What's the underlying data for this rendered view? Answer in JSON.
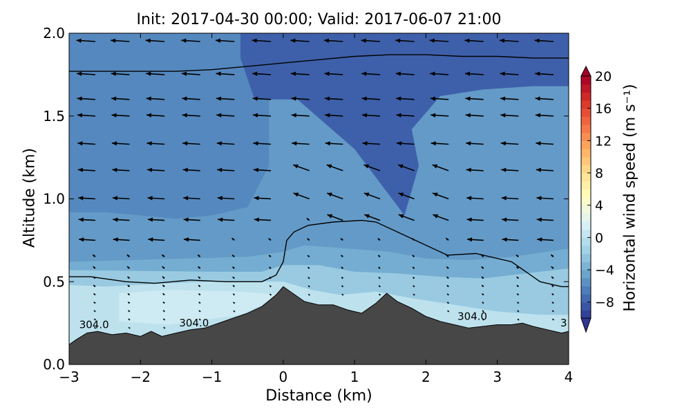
{
  "chart_data": {
    "type": "contour-quiver-cross-section",
    "title": "Init: 2017-04-30 00:00; Valid: 2017-06-07 21:00",
    "xlabel": "Distance (km)",
    "ylabel": "Altitude (km)",
    "xlim": [
      -3,
      4
    ],
    "ylim": [
      0,
      2.0
    ],
    "xticks": [
      "−3",
      "−2",
      "−1",
      "0",
      "1",
      "2",
      "3",
      "4"
    ],
    "yticks": [
      "0.0",
      "0.5",
      "1.0",
      "1.5",
      "2.0"
    ],
    "colorbar": {
      "label": "Horizontal wind speed (m s⁻¹)",
      "range": [
        -10,
        20
      ],
      "ticks": [
        "20",
        "16",
        "12",
        "8",
        "4",
        "0",
        "−4",
        "−8"
      ],
      "colormap": [
        "#313695",
        "#4575b4",
        "#74add1",
        "#abd9e9",
        "#e0f3f8",
        "#ffffbf",
        "#fee090",
        "#fdae61",
        "#f46d43",
        "#d73027",
        "#a50026"
      ]
    },
    "contour_labels": [
      {
        "text": "304.0",
        "x": -2.65,
        "y": 0.22
      },
      {
        "text": "304.0",
        "x": -1.25,
        "y": 0.23
      },
      {
        "text": "304.0",
        "x": 2.65,
        "y": 0.27
      },
      {
        "text": "3",
        "x": 3.93,
        "y": 0.23
      }
    ],
    "terrain": {
      "x": [
        -3,
        -2.9,
        -2.75,
        -2.6,
        -2.4,
        -2.2,
        -2.0,
        -1.85,
        -1.7,
        -1.5,
        -1.3,
        -1.1,
        -0.9,
        -0.7,
        -0.5,
        -0.3,
        -0.1,
        0.0,
        0.1,
        0.3,
        0.5,
        0.7,
        0.9,
        1.1,
        1.3,
        1.45,
        1.6,
        1.8,
        2.0,
        2.2,
        2.4,
        2.6,
        2.8,
        3.0,
        3.2,
        3.35,
        3.5,
        3.7,
        3.9,
        4.0
      ],
      "y": [
        0.12,
        0.15,
        0.19,
        0.2,
        0.18,
        0.19,
        0.17,
        0.2,
        0.17,
        0.19,
        0.21,
        0.22,
        0.25,
        0.28,
        0.31,
        0.35,
        0.42,
        0.47,
        0.44,
        0.38,
        0.36,
        0.36,
        0.33,
        0.31,
        0.37,
        0.43,
        0.38,
        0.34,
        0.29,
        0.26,
        0.24,
        0.22,
        0.23,
        0.24,
        0.24,
        0.25,
        0.23,
        0.21,
        0.19,
        0.2
      ]
    },
    "wind_speed_fill": {
      "background_value": -5,
      "regions": [
        {
          "level": -6,
          "x": [
            -3,
            -0.2,
            -0.2,
            -0.5,
            -1.0,
            -1.5,
            -2.0,
            -2.5,
            -3
          ],
          "y": [
            2.0,
            2.0,
            1.2,
            0.95,
            0.9,
            0.88,
            0.9,
            0.92,
            0.92
          ]
        },
        {
          "level": -8,
          "x": [
            -0.6,
            4,
            4,
            3.5,
            2.8,
            2.2,
            1.8,
            1.9,
            1.7,
            1.0,
            0.2,
            -0.4,
            -0.6
          ],
          "y": [
            2.0,
            2.0,
            1.68,
            1.68,
            1.66,
            1.62,
            1.42,
            1.2,
            0.9,
            1.3,
            1.6,
            1.6,
            1.85
          ]
        },
        {
          "level": -4,
          "x": [
            -3,
            -0.5,
            0.0,
            0.3,
            0.9,
            1.5,
            2.0,
            2.6,
            3.2,
            4,
            4,
            -3
          ],
          "y": [
            0.62,
            0.65,
            0.68,
            0.72,
            0.7,
            0.68,
            0.64,
            0.63,
            0.65,
            0.7,
            0.0,
            0.0
          ]
        },
        {
          "level": -2,
          "x": [
            -3,
            -1.0,
            -0.3,
            0.0,
            0.5,
            1.0,
            1.6,
            2.2,
            2.8,
            3.4,
            4,
            4,
            -3
          ],
          "y": [
            0.57,
            0.56,
            0.56,
            0.6,
            0.6,
            0.56,
            0.55,
            0.53,
            0.52,
            0.55,
            0.58,
            0.0,
            0.0
          ]
        },
        {
          "level": 0,
          "x": [
            -3,
            -2.5,
            -1.6,
            -1.0,
            -0.4,
            0.0,
            0.4,
            0.8,
            1.3,
            1.8,
            2.4,
            3.0,
            3.6,
            4,
            4,
            -3
          ],
          "y": [
            0.48,
            0.47,
            0.49,
            0.5,
            0.5,
            0.5,
            0.45,
            0.42,
            0.44,
            0.4,
            0.36,
            0.32,
            0.3,
            0.3,
            0.0,
            0.0
          ]
        },
        {
          "level": 1,
          "x": [
            -2.3,
            -1.6,
            -0.6,
            0.0,
            -0.6,
            -1.6,
            -2.3
          ],
          "y": [
            0.43,
            0.45,
            0.44,
            0.42,
            0.3,
            0.24,
            0.26
          ]
        }
      ]
    },
    "theta_contours": [
      {
        "x": [
          -3,
          -2.5,
          -2.0,
          -1.5,
          -1.0,
          -0.5,
          0.0,
          0.5,
          1.0,
          1.5,
          2.0,
          2.5,
          3.0,
          3.5,
          4.0
        ],
        "y": [
          1.77,
          1.77,
          1.77,
          1.77,
          1.78,
          1.8,
          1.82,
          1.84,
          1.86,
          1.87,
          1.87,
          1.86,
          1.86,
          1.85,
          1.85
        ]
      },
      {
        "x": [
          -3,
          -2.7,
          -2.2,
          -1.8,
          -1.3,
          -0.8,
          -0.3,
          -0.1,
          0.0,
          0.05,
          0.15,
          0.35,
          0.7,
          1.1,
          1.3,
          1.6,
          1.9,
          2.3,
          2.7,
          3.2,
          3.6,
          3.9,
          4.0
        ],
        "y": [
          0.53,
          0.53,
          0.5,
          0.49,
          0.51,
          0.5,
          0.5,
          0.54,
          0.62,
          0.75,
          0.8,
          0.84,
          0.86,
          0.87,
          0.86,
          0.8,
          0.74,
          0.66,
          0.67,
          0.62,
          0.5,
          0.47,
          0.47
        ]
      }
    ],
    "wind_vectors": {
      "columns_x": [
        -2.73,
        -2.25,
        -1.76,
        -1.26,
        -0.78,
        -0.27,
        0.27,
        0.74,
        1.26,
        1.74,
        2.22,
        2.71,
        3.2,
        3.69
      ],
      "levels_km": [
        1.95,
        1.75,
        1.6,
        1.5,
        1.33,
        1.17,
        1.0,
        0.87,
        0.75,
        0.65,
        0.58,
        0.52,
        0.47,
        0.42,
        0.37,
        0.32,
        0.27,
        0.22
      ],
      "speed_u": -4,
      "speed_w": 0.35
    }
  }
}
